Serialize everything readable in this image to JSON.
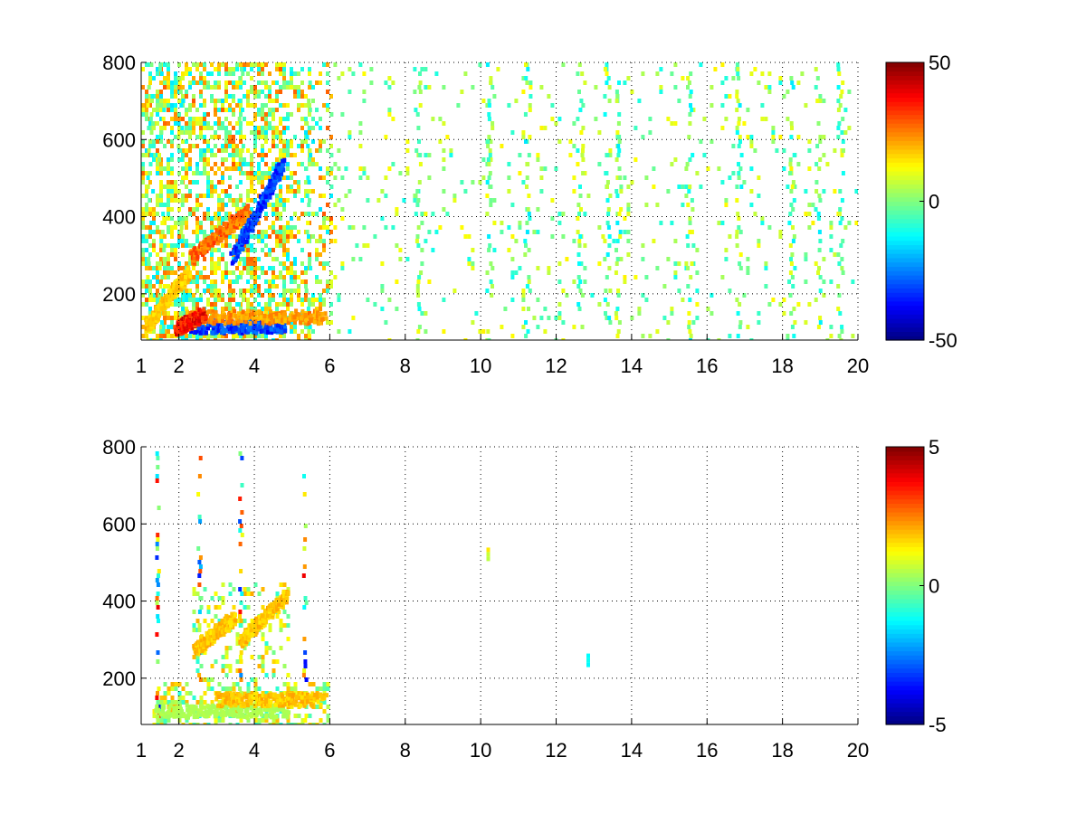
{
  "chart_data": [
    {
      "type": "heatmap",
      "title": "",
      "xlabel": "",
      "ylabel": "",
      "xlim": [
        1,
        20
      ],
      "ylim": [
        80,
        800
      ],
      "xticks": [
        "1",
        "2",
        "4",
        "6",
        "8",
        "10",
        "12",
        "14",
        "16",
        "18",
        "20"
      ],
      "xtick_values": [
        1,
        2,
        4,
        6,
        8,
        10,
        12,
        14,
        16,
        18,
        20
      ],
      "yticks": [
        "200",
        "400",
        "600",
        "800"
      ],
      "ytick_values": [
        200,
        400,
        600,
        800
      ],
      "grid": true,
      "colormap": "jet",
      "colorbar": {
        "min": -50,
        "max": 50,
        "ticks": [
          "50",
          "0",
          "-50"
        ],
        "tick_values": [
          50,
          0,
          -50
        ]
      },
      "features": [
        {
          "x": [
            2.3,
            4.8
          ],
          "y": [
            120,
            120
          ],
          "value": -35
        },
        {
          "x": [
            2.2,
            5.8
          ],
          "y": [
            145,
            145
          ],
          "value": 25
        },
        {
          "x": [
            1.9,
            2.6
          ],
          "y": [
            115,
            150
          ],
          "value": 40
        },
        {
          "x": [
            2.3,
            3.8
          ],
          "y": [
            300,
            420
          ],
          "value": 30
        },
        {
          "x": [
            3.4,
            4.7
          ],
          "y": [
            300,
            540
          ],
          "value": -35
        },
        {
          "x": [
            1.1,
            2.2
          ],
          "y": [
            120,
            260
          ],
          "value": 20
        }
      ],
      "scatter_columns": [
        1.2,
        1.5,
        2.0,
        3.6,
        5.4,
        8.3,
        10.2,
        11.2,
        12.6,
        13.3,
        13.6,
        15.5,
        16.8,
        18.2,
        18.9,
        19.5
      ]
    },
    {
      "type": "heatmap",
      "title": "",
      "xlabel": "",
      "ylabel": "",
      "xlim": [
        1,
        20
      ],
      "ylim": [
        80,
        800
      ],
      "xticks": [
        "1",
        "2",
        "4",
        "6",
        "8",
        "10",
        "12",
        "14",
        "16",
        "18",
        "20"
      ],
      "xtick_values": [
        1,
        2,
        4,
        6,
        8,
        10,
        12,
        14,
        16,
        18,
        20
      ],
      "yticks": [
        "200",
        "400",
        "600",
        "800"
      ],
      "ytick_values": [
        200,
        400,
        600,
        800
      ],
      "grid": true,
      "colormap": "jet",
      "colorbar": {
        "min": -5,
        "max": 5,
        "ticks": [
          "5",
          "0",
          "-5"
        ],
        "tick_values": [
          5,
          0,
          -5
        ]
      },
      "features": [
        {
          "x": [
            1.4,
            4.8
          ],
          "y": [
            120,
            120
          ],
          "value": 0.5
        },
        {
          "x": [
            3.0,
            5.8
          ],
          "y": [
            150,
            150
          ],
          "value": 2
        },
        {
          "x": [
            2.4,
            3.4
          ],
          "y": [
            280,
            360
          ],
          "value": 2
        },
        {
          "x": [
            3.6,
            4.8
          ],
          "y": [
            300,
            420
          ],
          "value": 2
        }
      ],
      "spots": [
        {
          "x": 10.2,
          "y": 520,
          "value": 1
        },
        {
          "x": 12.85,
          "y": 245,
          "value": -1
        }
      ],
      "scatter_columns": [
        1.4,
        2.5,
        3.6,
        5.3
      ]
    }
  ]
}
